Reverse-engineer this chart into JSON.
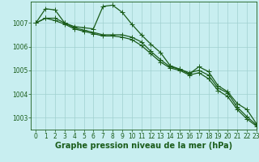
{
  "title": "Graphe pression niveau de la mer (hPa)",
  "background_color": "#c8eef0",
  "plot_bg_color": "#c8eef0",
  "grid_color": "#a0d0d0",
  "line_color": "#1a5c1a",
  "xlim": [
    -0.5,
    23
  ],
  "ylim": [
    1002.5,
    1007.9
  ],
  "yticks": [
    1003,
    1004,
    1005,
    1006,
    1007
  ],
  "xticks": [
    0,
    1,
    2,
    3,
    4,
    5,
    6,
    7,
    8,
    9,
    10,
    11,
    12,
    13,
    14,
    15,
    16,
    17,
    18,
    19,
    20,
    21,
    22,
    23
  ],
  "series": [
    [
      1007.0,
      1007.6,
      1007.55,
      1007.0,
      1006.85,
      1006.8,
      1006.75,
      1007.7,
      1007.75,
      1007.45,
      1006.95,
      1006.5,
      1006.1,
      1005.75,
      1005.2,
      1005.05,
      1004.85,
      1005.15,
      1004.95,
      1004.35,
      1004.1,
      1003.6,
      1003.35,
      1002.75
    ],
    [
      1007.0,
      1007.2,
      1007.2,
      1007.0,
      1006.8,
      1006.7,
      1006.6,
      1006.5,
      1006.5,
      1006.5,
      1006.4,
      1006.2,
      1005.8,
      1005.45,
      1005.15,
      1005.05,
      1004.9,
      1005.0,
      1004.8,
      1004.25,
      1004.05,
      1003.45,
      1003.05,
      1002.7
    ],
    [
      1007.0,
      1007.2,
      1007.1,
      1006.95,
      1006.75,
      1006.65,
      1006.55,
      1006.45,
      1006.45,
      1006.4,
      1006.3,
      1006.05,
      1005.7,
      1005.35,
      1005.1,
      1005.0,
      1004.8,
      1004.9,
      1004.65,
      1004.15,
      1003.9,
      1003.35,
      1002.95,
      1002.65
    ]
  ],
  "marker": "+",
  "markersize": 4,
  "linewidth": 0.9,
  "title_fontsize": 7,
  "tick_fontsize": 5.5
}
